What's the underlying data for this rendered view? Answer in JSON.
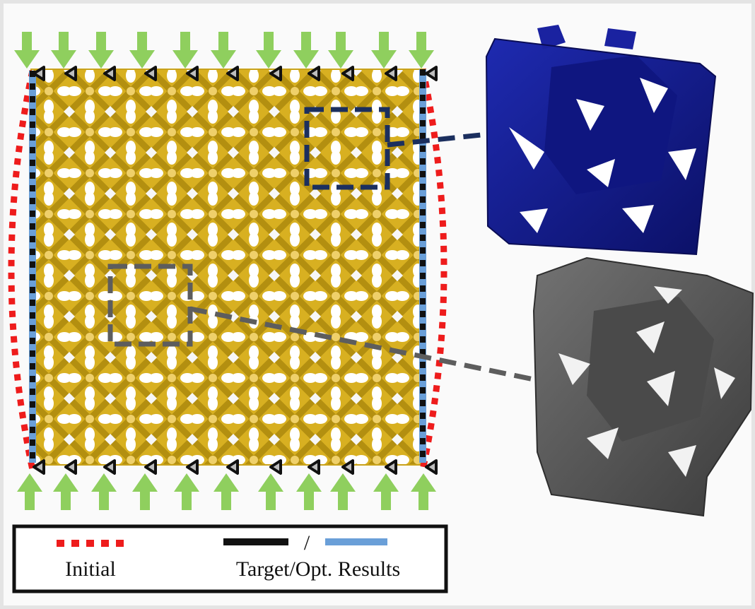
{
  "legend": {
    "initial_label": "Initial",
    "target_label": "Target/Opt. Results",
    "separator": "/"
  },
  "colors": {
    "background": "#fafafa",
    "lattice": "#d4ad1c",
    "initial_boundary": "#ee1c1c",
    "target_boundary": "#111111",
    "optimized_boundary": "#6a9fd8",
    "load_arrow": "#8fcf5e",
    "top_unit_cell": "#141a8c",
    "bottom_unit_cell": "#555555",
    "top_callout": "#1b2f5e",
    "bottom_callout": "#5d5d5d"
  },
  "icons": {
    "load": "arrow-down-icon",
    "support": "roller-support-icon"
  },
  "load_arrow_count_per_side": 11,
  "support_count_per_side": 11
}
